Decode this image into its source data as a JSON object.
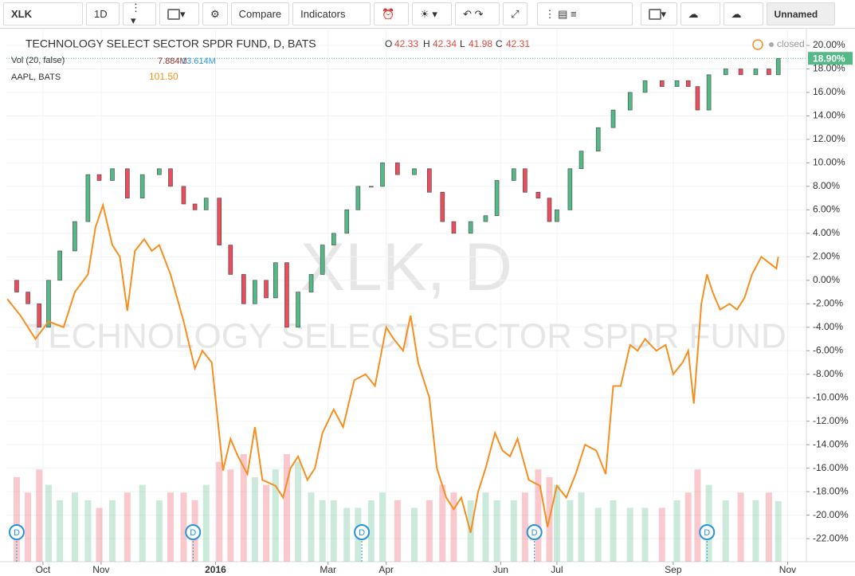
{
  "toolbar": {
    "symbol": "XLK",
    "interval": "1D",
    "compare": "Compare",
    "indicators": "Indicators",
    "layout_name": "Unnamed"
  },
  "legend": {
    "title": "TECHNOLOGY SELECT SECTOR SPDR FUND, D, BATS",
    "o_label": "O",
    "o": "42.33",
    "h_label": "H",
    "h": "42.34",
    "l_label": "L",
    "l": "41.98",
    "c_label": "C",
    "c": "42.31",
    "status": "closed",
    "volume_name": "Vol (20, false)",
    "volume_value": "7.884M",
    "volume_ma": "13.614M",
    "compare_name": "AAPL, BATS",
    "compare_value": "101.50"
  },
  "chart_data": {
    "type": "candlestick",
    "watermark": {
      "symbol": "XLK, D",
      "name": "TECHNOLOGY SELECT SECTOR SPDR FUND"
    },
    "xlim": [
      -19.5,
      407
    ],
    "xticks": [
      {
        "value": 0,
        "label": "Oct"
      },
      {
        "value": 31,
        "label": "Nov"
      },
      {
        "value": 92,
        "label": "2016"
      },
      {
        "value": 152,
        "label": "Mar"
      },
      {
        "value": 183,
        "label": "Apr"
      },
      {
        "value": 244,
        "label": "Jun"
      },
      {
        "value": 274,
        "label": "Jul"
      },
      {
        "value": 336,
        "label": "Sep"
      },
      {
        "value": 397,
        "label": "Nov"
      }
    ],
    "ylim": [
      -23.96,
      21.29
    ],
    "yticks": [
      {
        "value": -22,
        "label": "-22.00%"
      },
      {
        "value": -20,
        "label": "-20.00%"
      },
      {
        "value": -18,
        "label": "-18.00%"
      },
      {
        "value": -16,
        "label": "-16.00%"
      },
      {
        "value": -14,
        "label": "-14.00%"
      },
      {
        "value": -12,
        "label": "-12.00%"
      },
      {
        "value": -10,
        "label": "-10.00%"
      },
      {
        "value": -8,
        "label": "-8.00%"
      },
      {
        "value": -6,
        "label": "-6.00%"
      },
      {
        "value": -4,
        "label": "-4.00%"
      },
      {
        "value": -2,
        "label": "-2.00%"
      },
      {
        "value": 0,
        "label": "0.00%"
      },
      {
        "value": 2,
        "label": "2.00%"
      },
      {
        "value": 4,
        "label": "4.00%"
      },
      {
        "value": 6,
        "label": "6.00%"
      },
      {
        "value": 8,
        "label": "8.00%"
      },
      {
        "value": 10,
        "label": "10.00%"
      },
      {
        "value": 12,
        "label": "12.00%"
      },
      {
        "value": 14,
        "label": "14.00%"
      },
      {
        "value": 16,
        "label": "16.00%"
      },
      {
        "value": 18,
        "label": "18.00%"
      },
      {
        "value": 20,
        "label": "20.00%"
      }
    ],
    "last": {
      "value": 18.9,
      "label": "18.90%",
      "color": "#53b987"
    },
    "candles": {
      "up_color": "#53b987",
      "down_color": "#eb4d5c",
      "x": [
        -14,
        -8,
        -2,
        3,
        9,
        17,
        24,
        30,
        37,
        45,
        53,
        62,
        68,
        75,
        81,
        87,
        94,
        100,
        107,
        113,
        119,
        124,
        130,
        136,
        143,
        149,
        155,
        162,
        168,
        175,
        181,
        189,
        198,
        206,
        213,
        219,
        228,
        236,
        242,
        251,
        257,
        264,
        270,
        274,
        281,
        287,
        296,
        304,
        313,
        321,
        330,
        338,
        344,
        349,
        355,
        364,
        372,
        380,
        387,
        392
      ],
      "open": [
        0,
        -1,
        -2,
        -4,
        0,
        2.5,
        5,
        9,
        8.5,
        9.5,
        7,
        9,
        9.5,
        8,
        6.5,
        6,
        7,
        3,
        0.5,
        -2,
        0,
        -1.5,
        1.5,
        -4,
        -1,
        0.5,
        3,
        4,
        6,
        8,
        8,
        10,
        9,
        9.5,
        7.5,
        5,
        4,
        5,
        5.5,
        8.5,
        9.5,
        7.5,
        7,
        5,
        6,
        9.5,
        11,
        13,
        14.5,
        16,
        17,
        16.5,
        17,
        16.5,
        14.5,
        17.5,
        18,
        17.5,
        18,
        17.5
      ],
      "close": [
        -1,
        -2,
        -4,
        0,
        2.5,
        5,
        9,
        8.5,
        9.5,
        7,
        9,
        9.5,
        8,
        6.5,
        6,
        7,
        3,
        0.5,
        -2,
        0,
        -1.5,
        1.5,
        -4,
        -1,
        0.5,
        3,
        4,
        6,
        8,
        8,
        10,
        9,
        9.5,
        7.5,
        5,
        4,
        5,
        5.5,
        8.5,
        9.5,
        7.5,
        7,
        5,
        6,
        9.5,
        11,
        13,
        14.5,
        16,
        17,
        16.5,
        17,
        16.5,
        14.5,
        17.5,
        18,
        17.5,
        18,
        17.5,
        18.9
      ],
      "volume": [
        11,
        9,
        12,
        10,
        8,
        9,
        8,
        7,
        8,
        9,
        10,
        8,
        9,
        9,
        8,
        10,
        13,
        12,
        14,
        11,
        10,
        12,
        14,
        13,
        9,
        8,
        8,
        7,
        7,
        8,
        9,
        8,
        7,
        8,
        10,
        9,
        8,
        9,
        8,
        8,
        9,
        12,
        11,
        10,
        8,
        9,
        7,
        8,
        7,
        7,
        7,
        8,
        9,
        12,
        10,
        8,
        9,
        8,
        9,
        7.884
      ]
    },
    "line": {
      "color": "#f68f1f",
      "x": [
        -19,
        -12,
        -4,
        3,
        11,
        17,
        24,
        28,
        32,
        37,
        41,
        45,
        49,
        54,
        58,
        62,
        68,
        75,
        81,
        85,
        90,
        96,
        100,
        104,
        109,
        113,
        117,
        124,
        128,
        132,
        136,
        141,
        145,
        149,
        155,
        160,
        166,
        172,
        177,
        183,
        187,
        192,
        196,
        200,
        206,
        210,
        215,
        219,
        223,
        228,
        232,
        236,
        241,
        245,
        249,
        253,
        259,
        265,
        269,
        274,
        279,
        284,
        289,
        295,
        300,
        304,
        308,
        313,
        317,
        321,
        327,
        332,
        336,
        341,
        344,
        347,
        351,
        354,
        357,
        361,
        366,
        370,
        374,
        378,
        383,
        387,
        391,
        392
      ],
      "values": [
        -1.6,
        -3,
        -5,
        -3.5,
        -4,
        -1,
        0.5,
        4.5,
        6.4,
        3,
        2,
        -2.6,
        2.5,
        3.5,
        2.5,
        3,
        0.5,
        -3.5,
        -7.5,
        -6,
        -7,
        -16.2,
        -13.5,
        -15,
        -16.5,
        -12.5,
        -17,
        -17.5,
        -18.5,
        -16,
        -15,
        -17,
        -16,
        -13,
        -11,
        -12.5,
        -8.5,
        -8,
        -9,
        -4,
        -5,
        -6,
        -3,
        -7,
        -10,
        -16,
        -18.5,
        -19.5,
        -18.5,
        -21.5,
        -18,
        -16,
        -13,
        -14.5,
        -15,
        -13.5,
        -17,
        -17.5,
        -21,
        -17.5,
        -18.5,
        -16.5,
        -14,
        -14.5,
        -16.5,
        -9,
        -9,
        -5.5,
        -6,
        -5,
        -6,
        -5.5,
        -8,
        -7,
        -6,
        -10.5,
        -2,
        0.5,
        -1,
        -2.5,
        -2,
        -2.5,
        -1.5,
        0.5,
        2,
        1.5,
        1,
        2
      ]
    },
    "dividends": {
      "x": [
        -14,
        80,
        170,
        262,
        354
      ],
      "label": "D"
    }
  }
}
